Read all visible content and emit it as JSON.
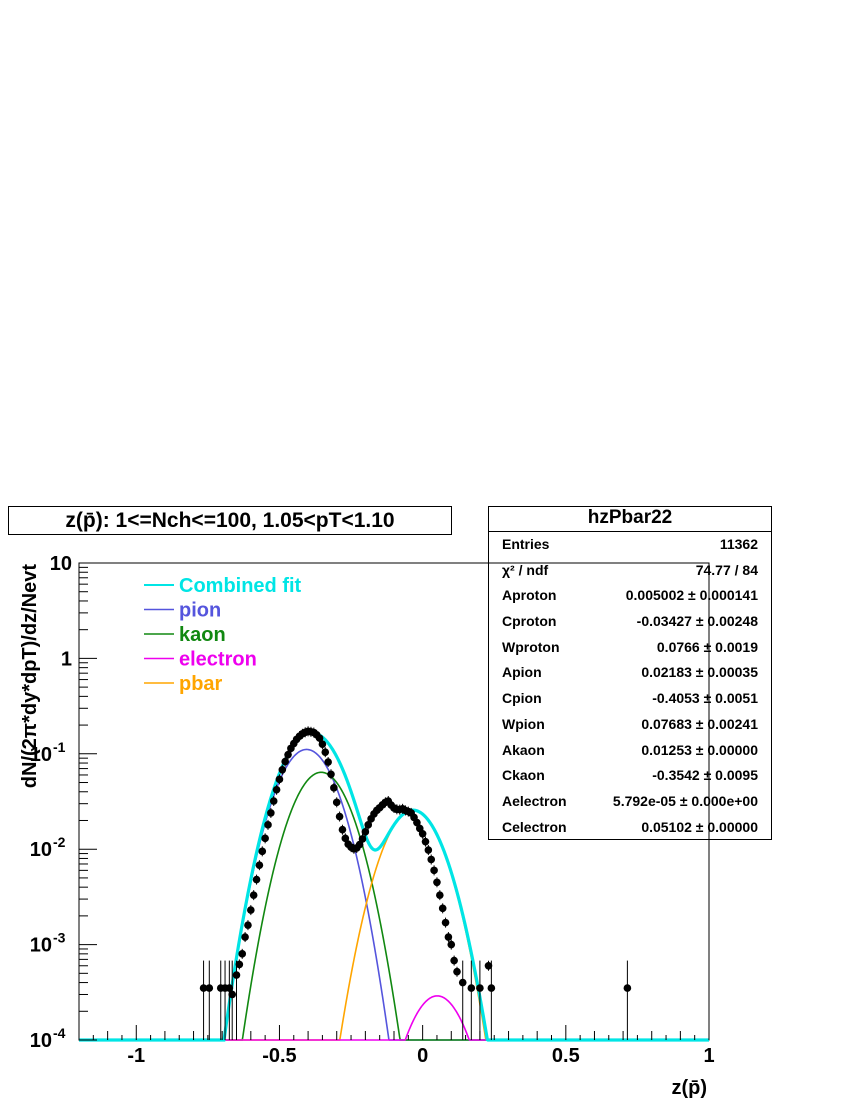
{
  "title": "z(p̄): 1<=Nch<=100, 1.05<pT<1.10",
  "stats": {
    "name": "hzPbar22",
    "rows": [
      {
        "label": "Entries",
        "value": "11362"
      },
      {
        "label": "χ² / ndf",
        "value": "74.77 / 84"
      },
      {
        "label": "Aproton",
        "value": "0.005002 ± 0.000141"
      },
      {
        "label": "Cproton",
        "value": "-0.03427 ± 0.00248"
      },
      {
        "label": "Wproton",
        "value": "0.0766 ± 0.0019"
      },
      {
        "label": "Apion",
        "value": "0.02183 ± 0.00035"
      },
      {
        "label": "Cpion",
        "value": "-0.4053 ± 0.0051"
      },
      {
        "label": "Wpion",
        "value": "0.07683 ± 0.00241"
      },
      {
        "label": "Akaon",
        "value": "0.01253 ± 0.00000"
      },
      {
        "label": "Ckaon",
        "value": "-0.3542 ± 0.0095"
      },
      {
        "label": "Aelectron",
        "value": "5.792e-05 ± 0.000e+00"
      },
      {
        "label": "Celectron",
        "value": "0.05102 ± 0.00000"
      }
    ]
  },
  "chart_data": {
    "type": "line",
    "title": "z(p̄): 1<=Nch<=100, 1.05<pT<1.10",
    "xlabel": "z(p̄)",
    "ylabel": "dN/(2π*dy*dpT)/dz/Nevt",
    "xlim": [
      -1.2,
      1.0
    ],
    "ylim": [
      0.0001,
      10
    ],
    "yscale": "log",
    "x_ticks": [
      "-1",
      "-0.5",
      "0",
      "0.5",
      "1"
    ],
    "x_tick_values": [
      -1,
      -0.5,
      0,
      0.5,
      1
    ],
    "y_ticks": [
      "10",
      "1",
      "10-1",
      "10-2",
      "10-3",
      "10-4"
    ],
    "legend": {
      "position": "top-left",
      "entries": [
        {
          "name": "Combined fit",
          "color": "#00e5e5"
        },
        {
          "name": "pion",
          "color": "#5555dd"
        },
        {
          "name": "kaon",
          "color": "#118811"
        },
        {
          "name": "electron",
          "color": "#ee00ee"
        },
        {
          "name": "pbar",
          "color": "#ffa500"
        }
      ]
    },
    "components": {
      "pion": {
        "A": 0.111,
        "C": -0.4053,
        "W": 0.0768,
        "color": "#5555dd"
      },
      "kaon": {
        "A": 0.064,
        "C": -0.3542,
        "W": 0.0766,
        "color": "#118811"
      },
      "electron": {
        "A": 0.00029,
        "C": 0.05102,
        "W": 0.0766,
        "color": "#ee00ee"
      },
      "pbar": {
        "A": 0.0255,
        "C": -0.03427,
        "W": 0.0766,
        "color": "#ffa500"
      }
    },
    "points": [
      [
        -0.765,
        0.00035
      ],
      [
        -0.745,
        0.00035
      ],
      [
        -0.705,
        0.00035
      ],
      [
        -0.69,
        0.00035
      ],
      [
        -0.675,
        0.00035
      ],
      [
        -0.665,
        0.0003
      ],
      [
        -0.65,
        0.00048
      ],
      [
        -0.64,
        0.00062
      ],
      [
        -0.63,
        0.0008
      ],
      [
        -0.62,
        0.0012
      ],
      [
        -0.61,
        0.0016
      ],
      [
        -0.6,
        0.0023
      ],
      [
        -0.59,
        0.0033
      ],
      [
        -0.58,
        0.0048
      ],
      [
        -0.57,
        0.0068
      ],
      [
        -0.56,
        0.0095
      ],
      [
        -0.55,
        0.013
      ],
      [
        -0.54,
        0.018
      ],
      [
        -0.53,
        0.024
      ],
      [
        -0.52,
        0.032
      ],
      [
        -0.51,
        0.042
      ],
      [
        -0.5,
        0.054
      ],
      [
        -0.49,
        0.068
      ],
      [
        -0.48,
        0.083
      ],
      [
        -0.47,
        0.098
      ],
      [
        -0.46,
        0.114
      ],
      [
        -0.45,
        0.128
      ],
      [
        -0.44,
        0.142
      ],
      [
        -0.43,
        0.153
      ],
      [
        -0.42,
        0.162
      ],
      [
        -0.41,
        0.168
      ],
      [
        -0.4,
        0.172
      ],
      [
        -0.39,
        0.17
      ],
      [
        -0.38,
        0.167
      ],
      [
        -0.37,
        0.158
      ],
      [
        -0.36,
        0.146
      ],
      [
        -0.35,
        0.126
      ],
      [
        -0.34,
        0.104
      ],
      [
        -0.33,
        0.082
      ],
      [
        -0.32,
        0.061
      ],
      [
        -0.31,
        0.044
      ],
      [
        -0.3,
        0.031
      ],
      [
        -0.29,
        0.022
      ],
      [
        -0.28,
        0.016
      ],
      [
        -0.27,
        0.013
      ],
      [
        -0.26,
        0.0113
      ],
      [
        -0.25,
        0.0105
      ],
      [
        -0.24,
        0.0101
      ],
      [
        -0.23,
        0.0103
      ],
      [
        -0.22,
        0.0112
      ],
      [
        -0.21,
        0.0128
      ],
      [
        -0.2,
        0.0152
      ],
      [
        -0.19,
        0.018
      ],
      [
        -0.18,
        0.0208
      ],
      [
        -0.17,
        0.0234
      ],
      [
        -0.16,
        0.0256
      ],
      [
        -0.15,
        0.0272
      ],
      [
        -0.14,
        0.0292
      ],
      [
        -0.13,
        0.031
      ],
      [
        -0.12,
        0.032
      ],
      [
        -0.11,
        0.029
      ],
      [
        -0.1,
        0.027
      ],
      [
        -0.09,
        0.0262
      ],
      [
        -0.08,
        0.026
      ],
      [
        -0.07,
        0.0265
      ],
      [
        -0.06,
        0.0255
      ],
      [
        -0.05,
        0.0248
      ],
      [
        -0.04,
        0.024
      ],
      [
        -0.03,
        0.0215
      ],
      [
        -0.02,
        0.019
      ],
      [
        -0.01,
        0.0165
      ],
      [
        0.0,
        0.0145
      ],
      [
        0.01,
        0.012
      ],
      [
        0.02,
        0.0098
      ],
      [
        0.03,
        0.0078
      ],
      [
        0.04,
        0.006
      ],
      [
        0.05,
        0.0045
      ],
      [
        0.06,
        0.0033
      ],
      [
        0.07,
        0.0024
      ],
      [
        0.08,
        0.0017
      ],
      [
        0.09,
        0.0012
      ],
      [
        0.1,
        0.001
      ],
      [
        0.11,
        0.00068
      ],
      [
        0.12,
        0.00052
      ],
      [
        0.14,
        0.0004
      ],
      [
        0.17,
        0.00035
      ],
      [
        0.2,
        0.00035
      ],
      [
        0.23,
        0.0006
      ],
      [
        0.24,
        0.00035
      ],
      [
        0.715,
        0.00035
      ]
    ]
  }
}
